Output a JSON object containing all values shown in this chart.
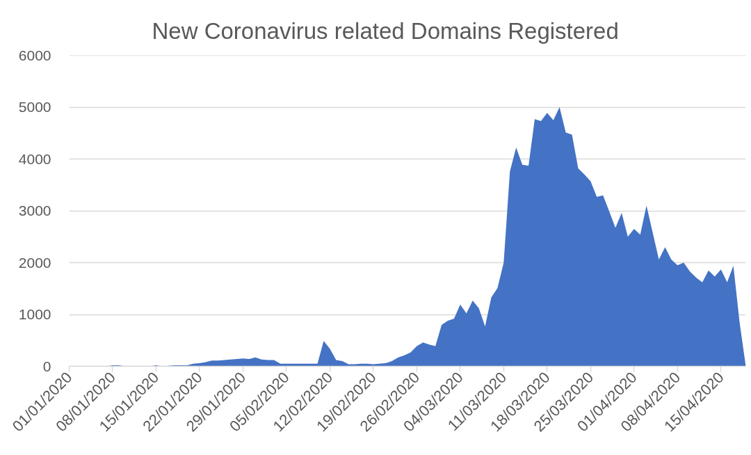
{
  "chart_data": {
    "type": "area",
    "title": "New Coronavirus related Domains Registered",
    "color": "#4472c4",
    "x": [
      "2020-01-01",
      "2020-01-02",
      "2020-01-03",
      "2020-01-04",
      "2020-01-05",
      "2020-01-06",
      "2020-01-07",
      "2020-01-08",
      "2020-01-09",
      "2020-01-10",
      "2020-01-11",
      "2020-01-12",
      "2020-01-13",
      "2020-01-14",
      "2020-01-15",
      "2020-01-16",
      "2020-01-17",
      "2020-01-18",
      "2020-01-19",
      "2020-01-20",
      "2020-01-21",
      "2020-01-22",
      "2020-01-23",
      "2020-01-24",
      "2020-01-25",
      "2020-01-26",
      "2020-01-27",
      "2020-01-28",
      "2020-01-29",
      "2020-01-30",
      "2020-01-31",
      "2020-02-01",
      "2020-02-02",
      "2020-02-03",
      "2020-02-04",
      "2020-02-05",
      "2020-02-06",
      "2020-02-07",
      "2020-02-08",
      "2020-02-09",
      "2020-02-10",
      "2020-02-11",
      "2020-02-12",
      "2020-02-13",
      "2020-02-14",
      "2020-02-15",
      "2020-02-16",
      "2020-02-17",
      "2020-02-18",
      "2020-02-19",
      "2020-02-20",
      "2020-02-21",
      "2020-02-22",
      "2020-02-23",
      "2020-02-24",
      "2020-02-25",
      "2020-02-26",
      "2020-02-27",
      "2020-02-28",
      "2020-02-29",
      "2020-03-01",
      "2020-03-02",
      "2020-03-03",
      "2020-03-04",
      "2020-03-05",
      "2020-03-06",
      "2020-03-07",
      "2020-03-08",
      "2020-03-09",
      "2020-03-10",
      "2020-03-11",
      "2020-03-12",
      "2020-03-13",
      "2020-03-14",
      "2020-03-15",
      "2020-03-16",
      "2020-03-17",
      "2020-03-18",
      "2020-03-19",
      "2020-03-20",
      "2020-03-21",
      "2020-03-22",
      "2020-03-23",
      "2020-03-24",
      "2020-03-25",
      "2020-03-26",
      "2020-03-27",
      "2020-03-28",
      "2020-03-29",
      "2020-03-30",
      "2020-03-31",
      "2020-04-01",
      "2020-04-02",
      "2020-04-03",
      "2020-04-04",
      "2020-04-05",
      "2020-04-06",
      "2020-04-07",
      "2020-04-08",
      "2020-04-09",
      "2020-04-10",
      "2020-04-11",
      "2020-04-12",
      "2020-04-13",
      "2020-04-14",
      "2020-04-15",
      "2020-04-16",
      "2020-04-17",
      "2020-04-18",
      "2020-04-19"
    ],
    "values": [
      0,
      0,
      0,
      0,
      0,
      0,
      0,
      20,
      20,
      0,
      0,
      0,
      0,
      0,
      20,
      0,
      10,
      20,
      20,
      20,
      50,
      60,
      80,
      110,
      110,
      120,
      130,
      140,
      150,
      140,
      170,
      130,
      120,
      120,
      50,
      50,
      50,
      50,
      50,
      50,
      50,
      490,
      340,
      120,
      100,
      40,
      40,
      50,
      50,
      40,
      50,
      60,
      100,
      170,
      210,
      270,
      390,
      460,
      420,
      390,
      800,
      880,
      920,
      1190,
      1020,
      1270,
      1120,
      770,
      1330,
      1510,
      2000,
      3760,
      4220,
      3890,
      3870,
      4770,
      4730,
      4890,
      4750,
      5000,
      4510,
      4470,
      3820,
      3700,
      3570,
      3270,
      3300,
      2990,
      2670,
      2960,
      2500,
      2650,
      2540,
      3100,
      2580,
      2060,
      2300,
      2060,
      1950,
      2000,
      1830,
      1710,
      1620,
      1850,
      1730,
      1870,
      1620,
      1940,
      850,
      0
    ],
    "xlim": [
      "2020-01-01",
      "2020-04-19"
    ],
    "xticks": [
      {
        "value": "2020-01-01",
        "label": "01/01/2020"
      },
      {
        "value": "2020-01-08",
        "label": "08/01/2020"
      },
      {
        "value": "2020-01-15",
        "label": "15/01/2020"
      },
      {
        "value": "2020-01-22",
        "label": "22/01/2020"
      },
      {
        "value": "2020-01-29",
        "label": "29/01/2020"
      },
      {
        "value": "2020-02-05",
        "label": "05/02/2020"
      },
      {
        "value": "2020-02-12",
        "label": "12/02/2020"
      },
      {
        "value": "2020-02-19",
        "label": "19/02/2020"
      },
      {
        "value": "2020-02-26",
        "label": "26/02/2020"
      },
      {
        "value": "2020-03-04",
        "label": "04/03/2020"
      },
      {
        "value": "2020-03-11",
        "label": "11/03/2020"
      },
      {
        "value": "2020-03-18",
        "label": "18/03/2020"
      },
      {
        "value": "2020-03-25",
        "label": "25/03/2020"
      },
      {
        "value": "2020-04-01",
        "label": "01/04/2020"
      },
      {
        "value": "2020-04-08",
        "label": "08/04/2020"
      },
      {
        "value": "2020-04-15",
        "label": "15/04/2020"
      }
    ],
    "ylim": [
      0,
      6000
    ],
    "yticks": [
      0,
      1000,
      2000,
      3000,
      4000,
      5000,
      6000
    ],
    "grid": "y"
  }
}
